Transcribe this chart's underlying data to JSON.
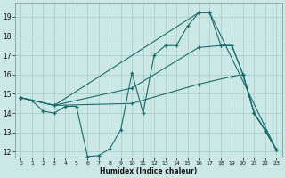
{
  "xlabel": "Humidex (Indice chaleur)",
  "background_color": "#cce8e6",
  "grid_color": "#aacfcc",
  "line_color": "#1a6b6b",
  "xlim": [
    -0.5,
    23.5
  ],
  "ylim": [
    11.7,
    19.7
  ],
  "xticks": [
    0,
    1,
    2,
    3,
    4,
    5,
    6,
    7,
    8,
    9,
    10,
    11,
    12,
    13,
    14,
    15,
    16,
    17,
    18,
    19,
    20,
    21,
    22,
    23
  ],
  "yticks": [
    12,
    13,
    14,
    15,
    16,
    17,
    18,
    19
  ],
  "lines": [
    {
      "x": [
        0,
        1,
        2,
        3,
        4,
        5,
        6,
        7,
        8,
        9,
        10,
        11,
        12,
        13,
        14,
        15,
        16,
        17,
        18,
        19,
        20,
        21,
        22,
        23
      ],
      "y": [
        14.8,
        14.65,
        14.1,
        14.0,
        14.35,
        14.35,
        11.75,
        11.8,
        12.15,
        13.15,
        16.1,
        14.0,
        17.0,
        17.5,
        17.5,
        18.5,
        19.2,
        19.2,
        17.5,
        17.5,
        16.0,
        14.0,
        13.1,
        12.1
      ]
    },
    {
      "x": [
        0,
        3,
        16,
        17,
        23
      ],
      "y": [
        14.8,
        14.4,
        19.2,
        19.2,
        12.1
      ]
    },
    {
      "x": [
        0,
        3,
        10,
        16,
        18,
        19,
        20,
        21,
        22,
        23
      ],
      "y": [
        14.8,
        14.4,
        15.3,
        17.4,
        17.5,
        17.5,
        16.0,
        14.0,
        13.1,
        12.1
      ]
    },
    {
      "x": [
        0,
        3,
        10,
        16,
        19,
        20,
        21,
        22,
        23
      ],
      "y": [
        14.8,
        14.4,
        14.5,
        15.5,
        15.9,
        16.0,
        14.0,
        13.1,
        12.1
      ]
    }
  ]
}
